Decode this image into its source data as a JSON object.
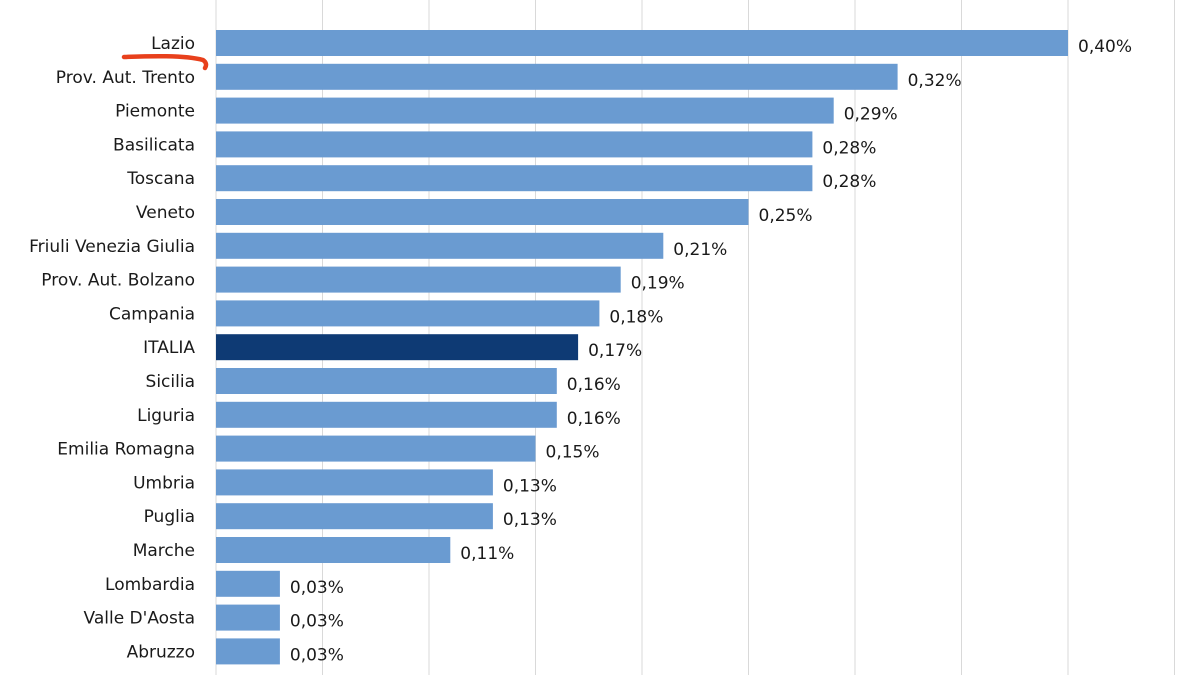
{
  "chart_data": {
    "type": "bar",
    "orientation": "horizontal",
    "categories": [
      "Lazio",
      "Prov. Aut. Trento",
      "Piemonte",
      "Basilicata",
      "Toscana",
      "Veneto",
      "Friuli Venezia Giulia",
      "Prov. Aut. Bolzano",
      "Campania",
      "ITALIA",
      "Sicilia",
      "Liguria",
      "Emilia Romagna",
      "Umbria",
      "Puglia",
      "Marche",
      "Lombardia",
      "Valle D'Aosta",
      "Abruzzo"
    ],
    "values": [
      0.4,
      0.32,
      0.29,
      0.28,
      0.28,
      0.25,
      0.21,
      0.19,
      0.18,
      0.17,
      0.16,
      0.16,
      0.15,
      0.13,
      0.13,
      0.11,
      0.03,
      0.03,
      0.03
    ],
    "value_labels": [
      "0,40%",
      "0,32%",
      "0,29%",
      "0,28%",
      "0,28%",
      "0,25%",
      "0,21%",
      "0,19%",
      "0,18%",
      "0,17%",
      "0,16%",
      "0,16%",
      "0,15%",
      "0,13%",
      "0,13%",
      "0,11%",
      "0,03%",
      "0,03%",
      "0,03%"
    ],
    "highlight_category": "ITALIA",
    "xlim": [
      0,
      0.45
    ],
    "grid": true,
    "legend": false,
    "colors": {
      "bar": "#6a9bd1",
      "highlight": "#0e3a74",
      "grid": "#d9d9d9",
      "text": "#1a1a1a",
      "annotation": "#e8401c"
    }
  }
}
